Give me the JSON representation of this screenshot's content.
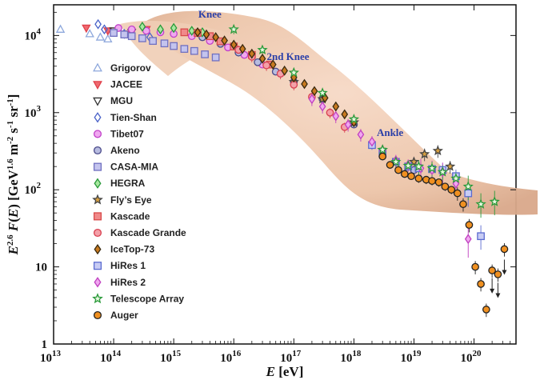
{
  "chart_data": {
    "type": "scatter",
    "title": "",
    "xlabel": "E [eV]",
    "ylabel": "E^2.6 F(E) [GeV^1.6 m^-2 s^-1 sr^-1]",
    "xscale": "log",
    "yscale": "log",
    "xlim": [
      10000000000000.0,
      5e+20
    ],
    "ylim": [
      1,
      25000
    ],
    "x_ticks": [
      {
        "value": 10000000000000.0,
        "base": "10",
        "exp": "13"
      },
      {
        "value": 100000000000000.0,
        "base": "10",
        "exp": "14"
      },
      {
        "value": 1000000000000000.0,
        "base": "10",
        "exp": "15"
      },
      {
        "value": 1e+16,
        "base": "10",
        "exp": "16"
      },
      {
        "value": 1e+17,
        "base": "10",
        "exp": "17"
      },
      {
        "value": 1e+18,
        "base": "10",
        "exp": "18"
      },
      {
        "value": 1e+19,
        "base": "10",
        "exp": "19"
      },
      {
        "value": 1e+20,
        "base": "10",
        "exp": "20"
      }
    ],
    "y_ticks": [
      {
        "value": 1,
        "base": "1",
        "exp": ""
      },
      {
        "value": 10,
        "base": "10",
        "exp": ""
      },
      {
        "value": 100,
        "base": "10",
        "exp": "2"
      },
      {
        "value": 1000,
        "base": "10",
        "exp": "3"
      },
      {
        "value": 10000,
        "base": "10",
        "exp": "4"
      }
    ],
    "legend_position": "left",
    "annotations": [
      {
        "text": "Knee",
        "x": 4000000000000000.0,
        "y": 17000
      },
      {
        "text": "2nd Knee",
        "x": 8e+16,
        "y": 4800
      },
      {
        "text": "Ankle",
        "x": 4e+18,
        "y": 500
      }
    ],
    "series": [
      {
        "name": "Grigorov",
        "marker": "triangle-up",
        "color": "#8ea8dc",
        "fill": "none",
        "x": [
          13000000000000.0,
          40000000000000.0,
          60000000000000.0,
          80000000000000.0
        ],
        "y": [
          12000,
          10500,
          9500,
          9000
        ],
        "err": []
      },
      {
        "name": "JACEE",
        "marker": "triangle-down",
        "color": "#e0404a",
        "fill": "#ef6a70",
        "x": [
          35000000000000.0,
          80000000000000.0,
          160000000000000.0,
          350000000000000.0
        ],
        "y": [
          12500,
          11500,
          10500,
          12000
        ],
        "err": []
      },
      {
        "name": "MGU",
        "marker": "triangle-down",
        "color": "#333333",
        "fill": "none",
        "x": [
          100000000000000.0,
          200000000000000.0
        ],
        "y": [
          11500,
          11000
        ],
        "err": []
      },
      {
        "name": "Tien-Shan",
        "marker": "diamond",
        "color": "#4a62c8",
        "fill": "none",
        "x": [
          55000000000000.0,
          70000000000000.0,
          150000000000000.0,
          400000000000000.0
        ],
        "y": [
          14000,
          12000,
          10500,
          9500
        ],
        "err": []
      },
      {
        "name": "Tibet07",
        "marker": "circle",
        "color": "#c040c8",
        "fill": "#f0a8f0",
        "x": [
          120000000000000.0,
          200000000000000.0,
          350000000000000.0,
          600000000000000.0,
          1000000000000000.0,
          2000000000000000.0,
          4000000000000000.0,
          8000000000000000.0,
          1.5e+16,
          3e+16,
          6e+16,
          1e+17
        ],
        "y": [
          12500,
          12000,
          11500,
          11000,
          10500,
          9800,
          8500,
          7000,
          5600,
          4200,
          3200,
          2500
        ],
        "err": []
      },
      {
        "name": "Akeno",
        "marker": "circle",
        "color": "#4a4a8a",
        "fill": "#b8bce0",
        "x": [
          3000000000000000.0,
          6000000000000000.0,
          1.2e+16,
          2.5e+16,
          5e+16,
          1e+17,
          3e+17,
          1e+18,
          3e+18,
          1e+19
        ],
        "y": [
          9500,
          7800,
          6000,
          4500,
          3400,
          2500,
          1500,
          700,
          300,
          180
        ],
        "err": []
      },
      {
        "name": "CASA-MIA",
        "marker": "square",
        "color": "#7070c0",
        "fill": "#c4c4ee",
        "x": [
          100000000000000.0,
          150000000000000.0,
          200000000000000.0,
          300000000000000.0,
          450000000000000.0,
          700000000000000.0,
          1000000000000000.0,
          1500000000000000.0,
          2200000000000000.0,
          3300000000000000.0,
          5000000000000000.0
        ],
        "y": [
          10800,
          10300,
          9800,
          9200,
          8500,
          7900,
          7300,
          6700,
          6300,
          5700,
          5200
        ],
        "err": [
          0.05
        ]
      },
      {
        "name": "HEGRA",
        "marker": "diamond",
        "color": "#2a9a3a",
        "fill": "#a8e8a0",
        "x": [
          300000000000000.0,
          600000000000000.0,
          1000000000000000.0,
          2000000000000000.0,
          3000000000000000.0
        ],
        "y": [
          13000,
          12000,
          12500,
          11500,
          11000
        ],
        "err": []
      },
      {
        "name": "Fly’s Eye",
        "marker": "star",
        "color": "#444444",
        "fill": "#d8a040",
        "x": [
          1e+17,
          3e+17,
          1e+18,
          3e+18,
          1e+19,
          1.5e+19,
          2.5e+19,
          4e+19
        ],
        "y": [
          2500,
          1500,
          750,
          330,
          230,
          290,
          320,
          200
        ],
        "err": [
          0.1
        ]
      },
      {
        "name": "Kascade",
        "marker": "square",
        "color": "#d84a4a",
        "fill": "#f08a8a",
        "x": [
          1500000000000000.0,
          2500000000000000.0,
          4000000000000000.0,
          6000000000000000.0,
          1e+16,
          2e+16,
          4e+16
        ],
        "y": [
          11000,
          10800,
          9800,
          8400,
          7200,
          5600,
          4200
        ],
        "err": []
      },
      {
        "name": "Kascade Grande",
        "marker": "circle",
        "color": "#d84050",
        "fill": "#f4a0a8",
        "x": [
          1.2e+16,
          2e+16,
          3.5e+16,
          6e+16,
          1e+17,
          2e+17,
          4e+17,
          7e+17
        ],
        "y": [
          6500,
          5300,
          4100,
          3200,
          2300,
          1600,
          1000,
          650
        ],
        "err": [
          0.14
        ]
      },
      {
        "name": "IceTop-73",
        "marker": "diamond",
        "color": "#3a2a10",
        "fill": "#c87a20",
        "x": [
          2500000000000000.0,
          3500000000000000.0,
          5000000000000000.0,
          7000000000000000.0,
          1e+16,
          1.4e+16,
          2e+16,
          3e+16,
          4.5e+16,
          7e+16,
          1e+17,
          1.5e+17,
          2.2e+17,
          3.3e+17,
          5e+17,
          7e+17,
          1e+18
        ],
        "y": [
          11000,
          10300,
          9500,
          8600,
          7600,
          6700,
          5800,
          5000,
          4200,
          3500,
          2850,
          2350,
          1900,
          1550,
          1200,
          950,
          750
        ],
        "err": [
          0.04
        ]
      },
      {
        "name": "HiRes 1",
        "marker": "square",
        "color": "#5a6ad0",
        "fill": "#c8ccf4",
        "x": [
          2e+18,
          3e+18,
          5e+18,
          8e+18,
          1.2e+19,
          2e+19,
          3e+19,
          5e+19,
          8e+19,
          1.3e+20
        ],
        "y": [
          380,
          300,
          230,
          200,
          190,
          185,
          180,
          150,
          90,
          25
        ],
        "err": [
          0.12
        ]
      },
      {
        "name": "HiRes 2",
        "marker": "diamond",
        "color": "#c040c0",
        "fill": "#f0a8f0",
        "x": [
          2e+17,
          3e+17,
          5e+17,
          8e+17,
          1.3e+18,
          2e+18,
          3e+18,
          5e+18,
          8e+18,
          1.3e+19,
          2e+19,
          3e+19,
          5e+19,
          8e+19
        ],
        "y": [
          1500,
          1200,
          900,
          700,
          520,
          420,
          320,
          240,
          210,
          190,
          180,
          170,
          120,
          23
        ],
        "err": [
          0.18
        ]
      },
      {
        "name": "Telescope Array",
        "marker": "star",
        "color": "#2a9a3a",
        "fill": "#e8f8e0",
        "x": [
          1e+16,
          3e+16,
          1e+17,
          3e+17,
          1e+18,
          3e+18,
          5e+18,
          8e+18,
          1.2e+19,
          2e+19,
          3e+19,
          5e+19,
          8e+19,
          1.3e+20,
          2.2e+20
        ],
        "y": [
          12000,
          6500,
          3300,
          1800,
          820,
          330,
          230,
          205,
          200,
          190,
          170,
          140,
          110,
          65,
          70
        ],
        "err": [
          0.12
        ]
      },
      {
        "name": "Auger",
        "marker": "circle",
        "color": "#222222",
        "fill": "#f09020",
        "x": [
          3e+18,
          4e+18,
          5.5e+18,
          7e+18,
          9e+18,
          1.2e+19,
          1.6e+19,
          2e+19,
          2.6e+19,
          3.3e+19,
          4.2e+19,
          5.3e+19,
          6.6e+19,
          8.3e+19,
          1.05e+20,
          1.3e+20,
          1.6e+20,
          2e+20,
          2.5e+20,
          3.2e+20
        ],
        "y": [
          270,
          210,
          180,
          160,
          150,
          140,
          135,
          130,
          125,
          110,
          100,
          90,
          65,
          35,
          10,
          6,
          2.8,
          9,
          8,
          17
        ],
        "err": [
          0.06
        ]
      }
    ]
  }
}
